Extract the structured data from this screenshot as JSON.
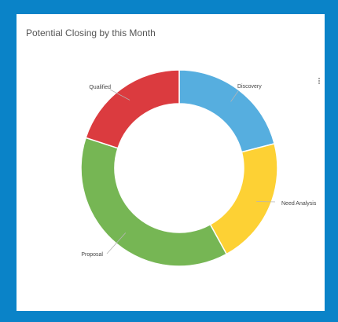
{
  "card": {
    "title": "Potential Closing by this Month"
  },
  "icons": {
    "menu": "more-vertical-icon"
  },
  "chart_data": {
    "type": "pie",
    "variant": "donut",
    "title": "Potential Closing by this Month",
    "categories": [
      "Discovery",
      "Need Analysis",
      "Proposal",
      "Qualified"
    ],
    "values": [
      21,
      21,
      38,
      20
    ],
    "colors": [
      "#56aedf",
      "#fdd134",
      "#76b654",
      "#db3b3f"
    ],
    "legend": "none (labels on slices)"
  }
}
